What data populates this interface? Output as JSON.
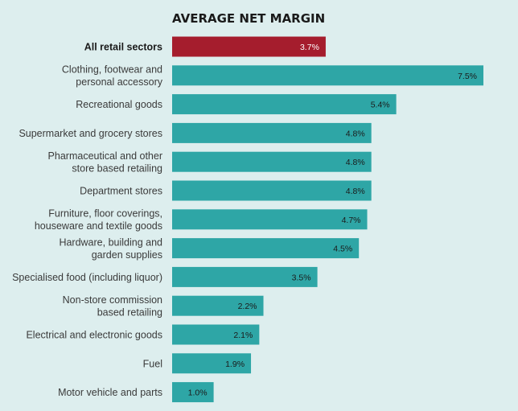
{
  "chart_data": {
    "type": "bar",
    "orientation": "horizontal",
    "title": "AVERAGE NET MARGIN",
    "xlabel": "",
    "ylabel": "",
    "value_unit": "%",
    "xlim": [
      0,
      7.5
    ],
    "grid": false,
    "legend": "none",
    "colors": {
      "highlight": "#a51d2d",
      "bar": "#2ea6a6",
      "background": "#ddeeee",
      "highlight_value_text": "#ffffff",
      "bar_value_text": "#1a1a1a"
    },
    "highlight_category": "All retail sectors",
    "categories": [
      "All retail sectors",
      "Clothing, footwear and personal accessory",
      "Recreational goods",
      "Supermarket and grocery stores",
      "Pharmaceutical and other store based retailing",
      "Department stores",
      "Furniture, floor coverings, houseware and textile goods",
      "Hardware, building and garden supplies",
      "Specialised food (including liquor)",
      "Non-store commission based retailing",
      "Electrical and electronic goods",
      "Fuel",
      "Motor vehicle and parts"
    ],
    "category_label_lines": [
      [
        "All retail sectors"
      ],
      [
        "Clothing, footwear and",
        "personal accessory"
      ],
      [
        "Recreational goods"
      ],
      [
        "Supermarket and grocery stores"
      ],
      [
        "Pharmaceutical and other",
        "store based retailing"
      ],
      [
        "Department stores"
      ],
      [
        "Furniture, floor coverings,",
        "houseware and textile goods"
      ],
      [
        "Hardware, building and",
        "garden supplies"
      ],
      [
        "Specialised food (including liquor)"
      ],
      [
        "Non-store commission",
        "based retailing"
      ],
      [
        "Electrical and electronic goods"
      ],
      [
        "Fuel"
      ],
      [
        "Motor vehicle and parts"
      ]
    ],
    "values": [
      3.7,
      7.5,
      5.4,
      4.8,
      4.8,
      4.8,
      4.7,
      4.5,
      3.5,
      2.2,
      2.1,
      1.9,
      1.0
    ],
    "value_labels": [
      "3.7%",
      "7.5%",
      "5.4%",
      "4.8%",
      "4.8%",
      "4.8%",
      "4.7%",
      "4.5%",
      "3.5%",
      "2.2%",
      "2.1%",
      "1.9%",
      "1.0%"
    ]
  }
}
